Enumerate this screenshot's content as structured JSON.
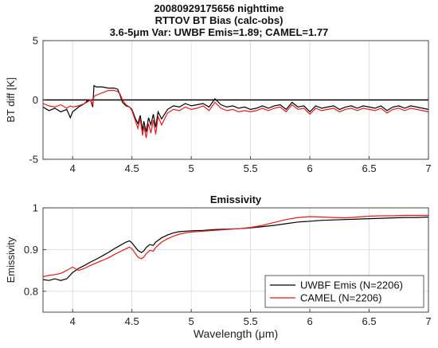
{
  "header": {
    "title_line1": "20080929175656 nighttime",
    "title_line2": "RTTOV BT Bias (calc-obs)",
    "title_line3_prefix": "3.6-5",
    "title_line3_mu": "μ",
    "title_line3_suffix": "m Var: UWBF Emis=1.89; CAMEL=1.77"
  },
  "chart_data": [
    {
      "type": "line",
      "title": "",
      "ylabel": "BT diff [K]",
      "xlabel": "",
      "xlim": [
        3.75,
        7
      ],
      "ylim": [
        -5,
        5
      ],
      "xticks": [
        4,
        4.5,
        5,
        5.5,
        6,
        6.5,
        7
      ],
      "xtick_labels": [
        "4",
        "4.5",
        "5",
        "5.5",
        "6",
        "6.5",
        "7"
      ],
      "yticks": [
        -5,
        0,
        5
      ],
      "ytick_labels": [
        "-5",
        "0",
        "5"
      ],
      "grid": true,
      "reference_line_y": 0,
      "series": [
        {
          "name": "UWBF Emis (N=2206)",
          "color": "#000000",
          "x": [
            3.75,
            3.8,
            3.85,
            3.9,
            3.95,
            3.98,
            4.0,
            4.05,
            4.1,
            4.12,
            4.15,
            4.17,
            4.18,
            4.2,
            4.25,
            4.3,
            4.35,
            4.38,
            4.4,
            4.42,
            4.45,
            4.48,
            4.5,
            4.53,
            4.55,
            4.57,
            4.59,
            4.6,
            4.62,
            4.64,
            4.66,
            4.68,
            4.7,
            4.72,
            4.75,
            4.8,
            4.85,
            4.9,
            4.95,
            5.0,
            5.05,
            5.1,
            5.15,
            5.2,
            5.25,
            5.3,
            5.35,
            5.4,
            5.45,
            5.5,
            5.55,
            5.6,
            5.65,
            5.7,
            5.75,
            5.8,
            5.85,
            5.9,
            5.95,
            6.0,
            6.05,
            6.1,
            6.15,
            6.2,
            6.25,
            6.3,
            6.35,
            6.4,
            6.45,
            6.5,
            6.55,
            6.6,
            6.65,
            6.7,
            6.75,
            6.8,
            6.85,
            6.9,
            6.95,
            7.0
          ],
          "y": [
            -0.6,
            -0.9,
            -0.7,
            -1.0,
            -0.8,
            -1.5,
            -1.0,
            -0.6,
            -0.3,
            -0.1,
            0.0,
            -0.6,
            1.2,
            1.1,
            1.1,
            1.0,
            1.0,
            0.9,
            0.4,
            -0.2,
            -0.5,
            -0.6,
            -0.8,
            -1.6,
            -2.0,
            -1.3,
            -2.6,
            -1.8,
            -2.7,
            -1.5,
            -2.1,
            -1.2,
            -2.3,
            -1.0,
            -1.6,
            -0.8,
            -0.5,
            -0.6,
            -0.3,
            -0.5,
            -0.4,
            -0.3,
            -0.6,
            0.1,
            -0.4,
            -0.6,
            -0.5,
            -0.7,
            -0.6,
            -0.8,
            -0.7,
            -0.5,
            -0.7,
            -0.5,
            -0.4,
            -0.8,
            -0.2,
            -0.6,
            -0.5,
            -1.0,
            -0.5,
            -0.7,
            -0.6,
            -0.5,
            -0.8,
            -0.6,
            -0.5,
            -0.7,
            -0.5,
            -0.6,
            -0.7,
            -0.5,
            -0.9,
            -0.6,
            -0.5,
            -0.7,
            -0.5,
            -0.6,
            -0.7,
            -0.8
          ]
        },
        {
          "name": "CAMEL (N=2206)",
          "color": "#e8191c",
          "x": [
            3.75,
            3.8,
            3.85,
            3.9,
            3.95,
            3.98,
            4.0,
            4.05,
            4.1,
            4.12,
            4.15,
            4.17,
            4.18,
            4.2,
            4.25,
            4.3,
            4.35,
            4.38,
            4.4,
            4.42,
            4.45,
            4.48,
            4.5,
            4.53,
            4.55,
            4.57,
            4.59,
            4.6,
            4.62,
            4.64,
            4.66,
            4.68,
            4.7,
            4.72,
            4.75,
            4.8,
            4.85,
            4.9,
            4.95,
            5.0,
            5.05,
            5.1,
            5.15,
            5.2,
            5.25,
            5.3,
            5.35,
            5.4,
            5.45,
            5.5,
            5.55,
            5.6,
            5.65,
            5.7,
            5.75,
            5.8,
            5.85,
            5.9,
            5.95,
            6.0,
            6.05,
            6.1,
            6.15,
            6.2,
            6.25,
            6.3,
            6.35,
            6.4,
            6.45,
            6.5,
            6.55,
            6.6,
            6.65,
            6.7,
            6.75,
            6.8,
            6.85,
            6.9,
            6.95,
            7.0
          ],
          "y": [
            -0.3,
            -0.5,
            -0.6,
            -0.4,
            -0.7,
            -0.5,
            -0.6,
            -0.5,
            -0.3,
            -0.2,
            0.0,
            -0.4,
            0.3,
            0.4,
            0.6,
            0.8,
            0.8,
            0.7,
            0.5,
            0.0,
            -0.4,
            -0.6,
            -0.9,
            -1.8,
            -2.4,
            -1.6,
            -3.0,
            -2.2,
            -3.2,
            -2.0,
            -2.8,
            -1.7,
            -2.9,
            -1.4,
            -2.1,
            -1.1,
            -0.8,
            -0.9,
            -0.6,
            -0.8,
            -0.7,
            -0.5,
            -0.9,
            -0.2,
            -0.7,
            -0.9,
            -0.8,
            -1.0,
            -0.9,
            -1.0,
            -0.9,
            -0.7,
            -0.9,
            -0.7,
            -0.6,
            -1.0,
            -0.4,
            -0.8,
            -0.7,
            -1.2,
            -0.7,
            -0.9,
            -0.8,
            -0.7,
            -1.0,
            -0.8,
            -0.7,
            -0.9,
            -0.7,
            -0.8,
            -0.9,
            -0.7,
            -1.1,
            -0.8,
            -0.7,
            -0.9,
            -0.7,
            -0.8,
            -0.9,
            -1.0
          ]
        }
      ]
    },
    {
      "type": "line",
      "title": "Emissivity",
      "ylabel": "Emissivity",
      "xlabel_prefix": "Wavelength (",
      "xlabel_mu": "μ",
      "xlabel_suffix": "m)",
      "xlim": [
        3.75,
        7
      ],
      "ylim": [
        0.75,
        1.0
      ],
      "xticks": [
        4,
        4.5,
        5,
        5.5,
        6,
        6.5,
        7
      ],
      "xtick_labels": [
        "4",
        "4.5",
        "5",
        "5.5",
        "6",
        "6.5",
        "7"
      ],
      "yticks": [
        0.8,
        0.9,
        1.0
      ],
      "ytick_labels": [
        "0.8",
        "0.9",
        "1"
      ],
      "grid": true,
      "legend_position": "bottom-right",
      "series": [
        {
          "name": "UWBF Emis (N=2206)",
          "color": "#000000",
          "x": [
            3.75,
            3.8,
            3.85,
            3.9,
            3.95,
            4.0,
            4.05,
            4.1,
            4.15,
            4.2,
            4.25,
            4.3,
            4.35,
            4.4,
            4.45,
            4.48,
            4.5,
            4.53,
            4.55,
            4.58,
            4.6,
            4.62,
            4.65,
            4.68,
            4.7,
            4.75,
            4.8,
            4.85,
            4.9,
            4.95,
            5.0,
            5.1,
            5.2,
            5.3,
            5.4,
            5.5,
            5.6,
            5.7,
            5.8,
            5.9,
            6.0,
            6.1,
            6.2,
            6.3,
            6.4,
            6.5,
            6.6,
            6.7,
            6.8,
            6.9,
            7.0
          ],
          "y": [
            0.828,
            0.826,
            0.83,
            0.826,
            0.83,
            0.845,
            0.855,
            0.862,
            0.87,
            0.877,
            0.885,
            0.893,
            0.902,
            0.91,
            0.918,
            0.921,
            0.916,
            0.905,
            0.898,
            0.893,
            0.897,
            0.905,
            0.912,
            0.91,
            0.918,
            0.928,
            0.935,
            0.94,
            0.943,
            0.944,
            0.945,
            0.946,
            0.948,
            0.949,
            0.95,
            0.952,
            0.955,
            0.958,
            0.962,
            0.966,
            0.968,
            0.97,
            0.971,
            0.972,
            0.973,
            0.974,
            0.975,
            0.976,
            0.977,
            0.977,
            0.978
          ]
        },
        {
          "name": "CAMEL (N=2206)",
          "color": "#e8191c",
          "x": [
            3.75,
            3.8,
            3.85,
            3.9,
            3.95,
            4.0,
            4.05,
            4.1,
            4.15,
            4.2,
            4.25,
            4.3,
            4.35,
            4.4,
            4.45,
            4.48,
            4.5,
            4.53,
            4.55,
            4.58,
            4.6,
            4.62,
            4.65,
            4.68,
            4.7,
            4.75,
            4.8,
            4.85,
            4.9,
            4.95,
            5.0,
            5.1,
            5.2,
            5.3,
            5.4,
            5.5,
            5.6,
            5.7,
            5.8,
            5.9,
            6.0,
            6.1,
            6.2,
            6.3,
            6.4,
            6.5,
            6.6,
            6.7,
            6.8,
            6.9,
            7.0
          ],
          "y": [
            0.835,
            0.838,
            0.84,
            0.843,
            0.85,
            0.858,
            0.85,
            0.855,
            0.862,
            0.868,
            0.874,
            0.88,
            0.888,
            0.895,
            0.902,
            0.906,
            0.902,
            0.89,
            0.882,
            0.878,
            0.882,
            0.89,
            0.898,
            0.896,
            0.905,
            0.918,
            0.926,
            0.932,
            0.937,
            0.94,
            0.942,
            0.944,
            0.946,
            0.948,
            0.95,
            0.953,
            0.958,
            0.965,
            0.972,
            0.977,
            0.979,
            0.978,
            0.977,
            0.976,
            0.978,
            0.98,
            0.981,
            0.981,
            0.982,
            0.982,
            0.982
          ]
        }
      ]
    }
  ]
}
